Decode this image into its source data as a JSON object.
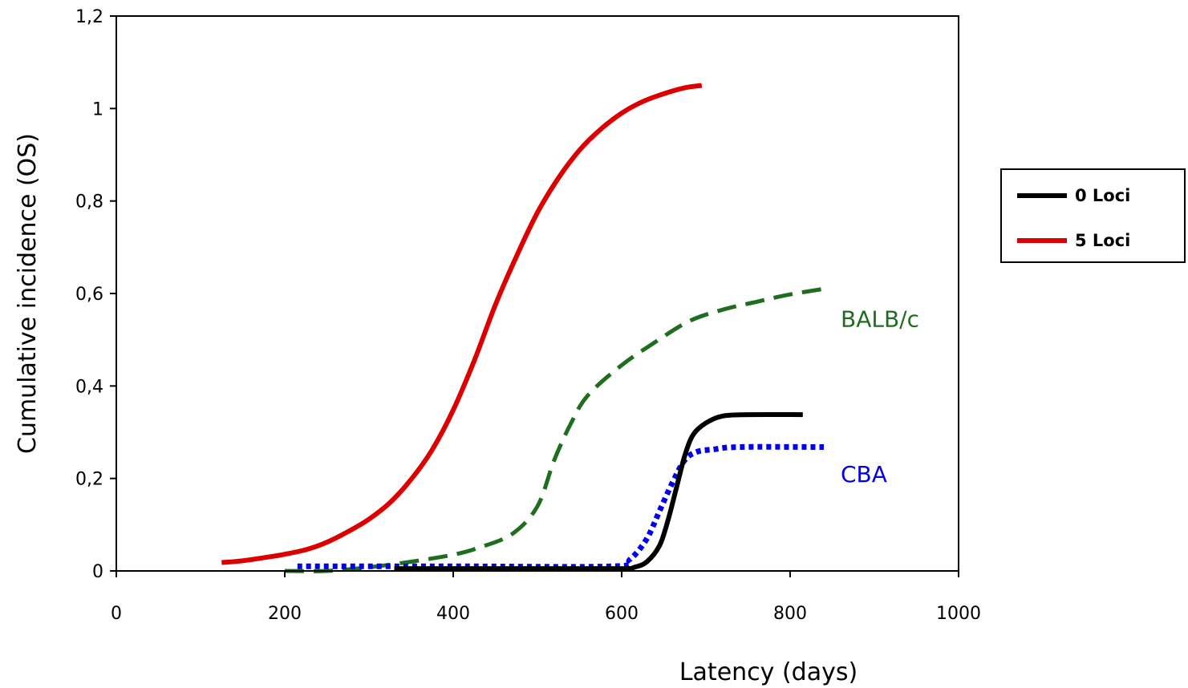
{
  "chart_data": {
    "type": "line",
    "title": "",
    "xlabel": "Latency (days)",
    "ylabel": "Cumulative incidence (OS)",
    "xlim": [
      0,
      1000
    ],
    "ylim": [
      0,
      1.2
    ],
    "x_ticks": [
      0,
      200,
      400,
      600,
      800,
      1000
    ],
    "x_tick_labels": [
      "0",
      "200",
      "400",
      "600",
      "800",
      "1000"
    ],
    "y_ticks": [
      0,
      0.2,
      0.4,
      0.6,
      0.8,
      1.0,
      1.2
    ],
    "y_tick_labels": [
      "0",
      "0,2",
      "0,4",
      "0,6",
      "0,8",
      "1",
      "1,2"
    ],
    "grid": false,
    "legend": {
      "placement": "right",
      "entries": [
        {
          "name": "0 Loci",
          "color": "#000000",
          "style": "solid"
        },
        {
          "name": "5 Loci",
          "color": "#dd0000",
          "style": "solid"
        }
      ]
    },
    "series": [
      {
        "name": "5 Loci",
        "color": "#dd0000",
        "style": "solid",
        "points": [
          [
            125,
            0.018
          ],
          [
            150,
            0.022
          ],
          [
            180,
            0.03
          ],
          [
            200,
            0.036
          ],
          [
            225,
            0.046
          ],
          [
            250,
            0.062
          ],
          [
            275,
            0.085
          ],
          [
            300,
            0.112
          ],
          [
            325,
            0.148
          ],
          [
            350,
            0.198
          ],
          [
            375,
            0.262
          ],
          [
            400,
            0.348
          ],
          [
            425,
            0.455
          ],
          [
            450,
            0.575
          ],
          [
            475,
            0.68
          ],
          [
            500,
            0.775
          ],
          [
            525,
            0.85
          ],
          [
            550,
            0.91
          ],
          [
            575,
            0.955
          ],
          [
            600,
            0.99
          ],
          [
            625,
            1.015
          ],
          [
            650,
            1.032
          ],
          [
            675,
            1.045
          ],
          [
            695,
            1.05
          ]
        ]
      },
      {
        "name": "0 Loci",
        "color": "#000000",
        "style": "solid",
        "points": [
          [
            330,
            0.005
          ],
          [
            500,
            0.005
          ],
          [
            600,
            0.005
          ],
          [
            615,
            0.008
          ],
          [
            630,
            0.02
          ],
          [
            645,
            0.055
          ],
          [
            655,
            0.11
          ],
          [
            665,
            0.18
          ],
          [
            675,
            0.25
          ],
          [
            685,
            0.295
          ],
          [
            700,
            0.32
          ],
          [
            720,
            0.335
          ],
          [
            750,
            0.338
          ],
          [
            815,
            0.338
          ]
        ]
      },
      {
        "name": "BALB/c",
        "color": "#1f6e1f",
        "style": "dashed",
        "points": [
          [
            200,
            0.0
          ],
          [
            250,
            0.0
          ],
          [
            300,
            0.008
          ],
          [
            350,
            0.02
          ],
          [
            400,
            0.035
          ],
          [
            430,
            0.05
          ],
          [
            470,
            0.08
          ],
          [
            500,
            0.14
          ],
          [
            520,
            0.24
          ],
          [
            540,
            0.32
          ],
          [
            560,
            0.38
          ],
          [
            600,
            0.445
          ],
          [
            640,
            0.495
          ],
          [
            680,
            0.54
          ],
          [
            720,
            0.565
          ],
          [
            760,
            0.582
          ],
          [
            800,
            0.598
          ],
          [
            840,
            0.61
          ]
        ]
      },
      {
        "name": "CBA",
        "color": "#0000ee",
        "style": "dotted",
        "points": [
          [
            215,
            0.01
          ],
          [
            400,
            0.01
          ],
          [
            590,
            0.01
          ],
          [
            610,
            0.025
          ],
          [
            630,
            0.07
          ],
          [
            645,
            0.13
          ],
          [
            660,
            0.19
          ],
          [
            675,
            0.24
          ],
          [
            690,
            0.258
          ],
          [
            710,
            0.263
          ],
          [
            740,
            0.268
          ],
          [
            840,
            0.268
          ]
        ]
      }
    ],
    "annotations": [
      {
        "text": "BALB/c",
        "color": "#1f6e1f",
        "x": 860,
        "y": 0.545
      },
      {
        "text": "CBA",
        "color": "#0000ee",
        "x": 860,
        "y": 0.21
      }
    ]
  }
}
